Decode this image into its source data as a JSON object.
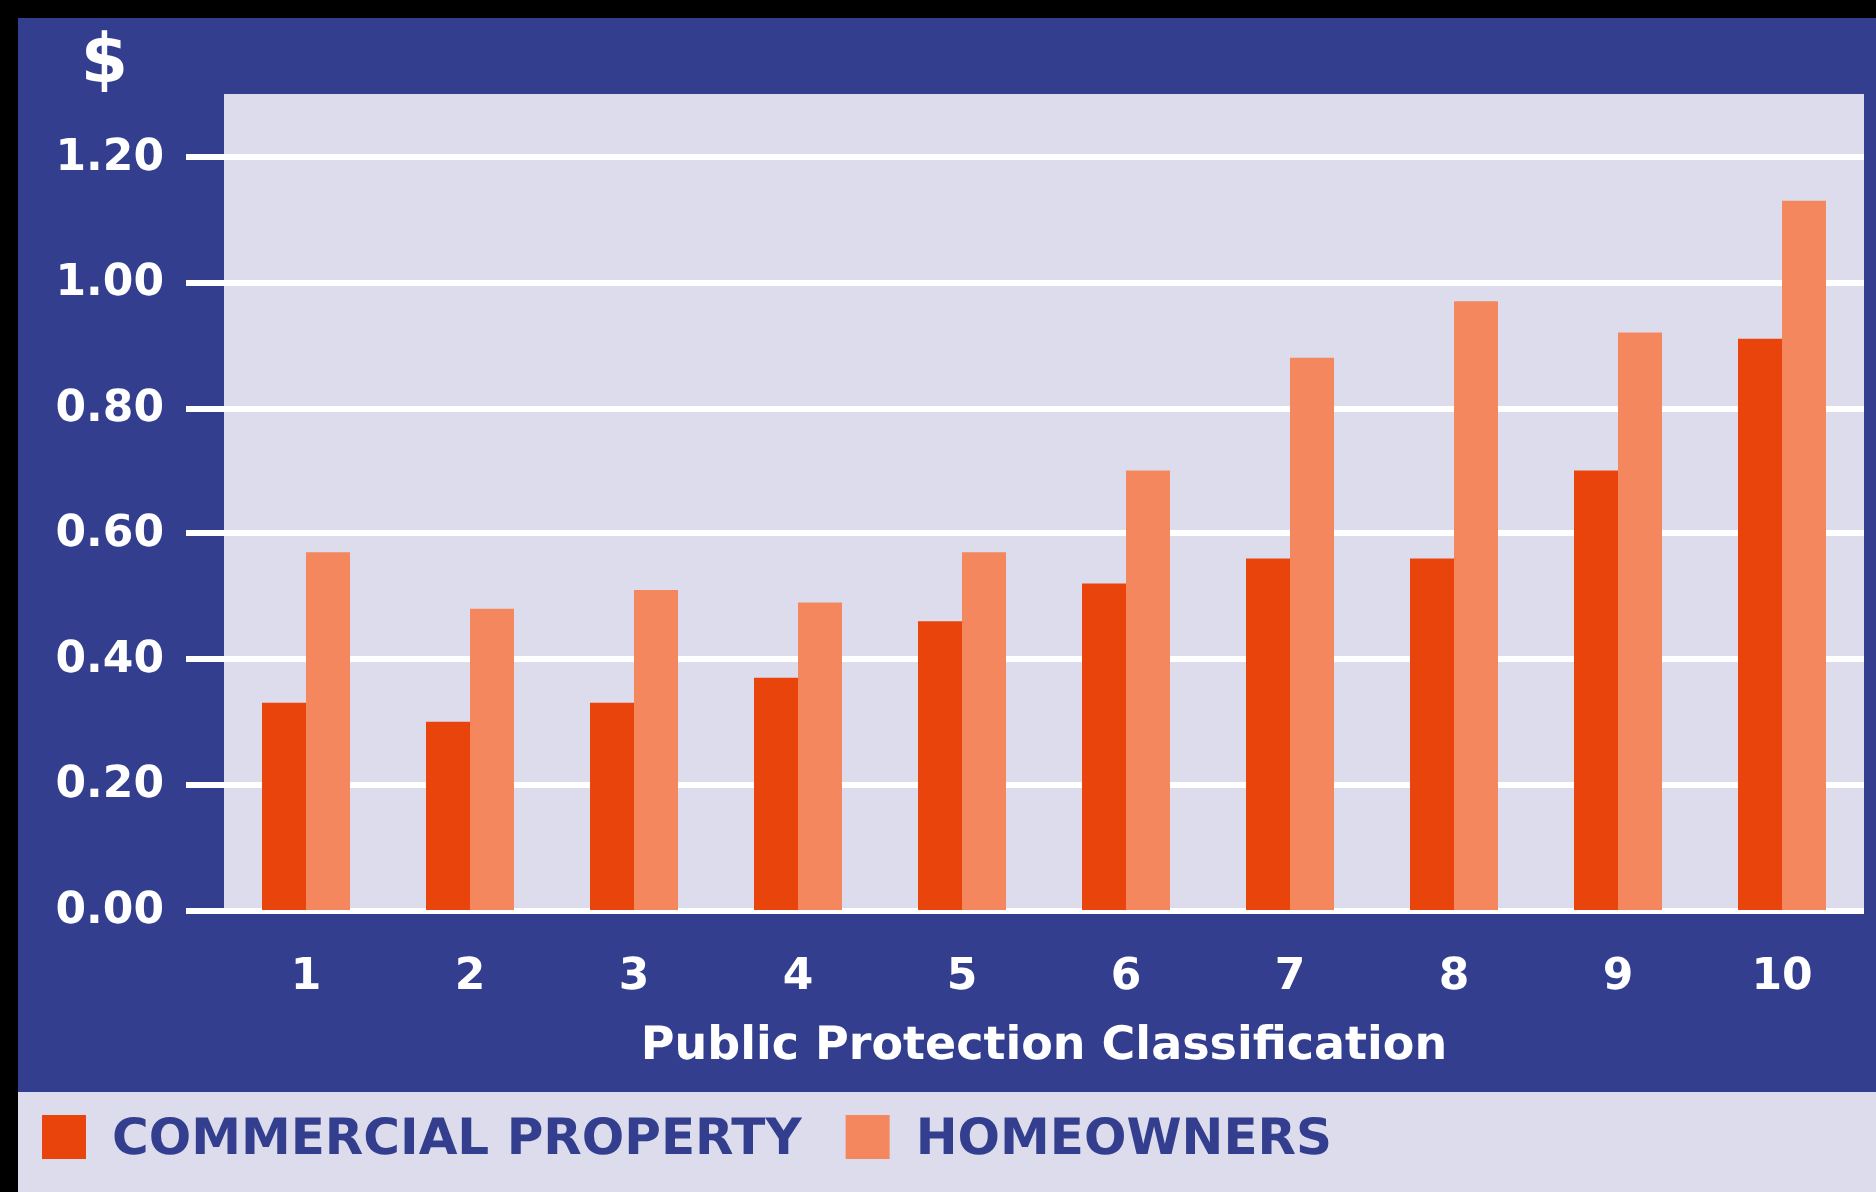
{
  "chart_data": {
    "type": "bar",
    "ylabel": "$",
    "xlabel": "Public Protection Classification",
    "categories": [
      "1",
      "2",
      "3",
      "4",
      "5",
      "6",
      "7",
      "8",
      "9",
      "10"
    ],
    "series": [
      {
        "name": "COMMERCIAL PROPERTY",
        "color": "#e8440c",
        "values": [
          0.33,
          0.3,
          0.33,
          0.37,
          0.46,
          0.52,
          0.56,
          0.56,
          0.7,
          0.91
        ]
      },
      {
        "name": "HOMEOWNERS",
        "color": "#f4875e",
        "values": [
          0.57,
          0.48,
          0.51,
          0.49,
          0.57,
          0.7,
          0.88,
          0.97,
          0.92,
          1.13
        ]
      }
    ],
    "ylim": [
      0,
      1.3
    ],
    "yticks": [
      {
        "value": 0,
        "label": "0.00"
      },
      {
        "value": 0.2,
        "label": "0.20"
      },
      {
        "value": 0.4,
        "label": "0.40"
      },
      {
        "value": 0.6,
        "label": "0.60"
      },
      {
        "value": 0.8,
        "label": "0.80"
      },
      {
        "value": 1.0,
        "label": "1.00"
      },
      {
        "value": 1.2,
        "label": "1.20"
      }
    ],
    "grid": "y",
    "legend": "bottom left"
  }
}
